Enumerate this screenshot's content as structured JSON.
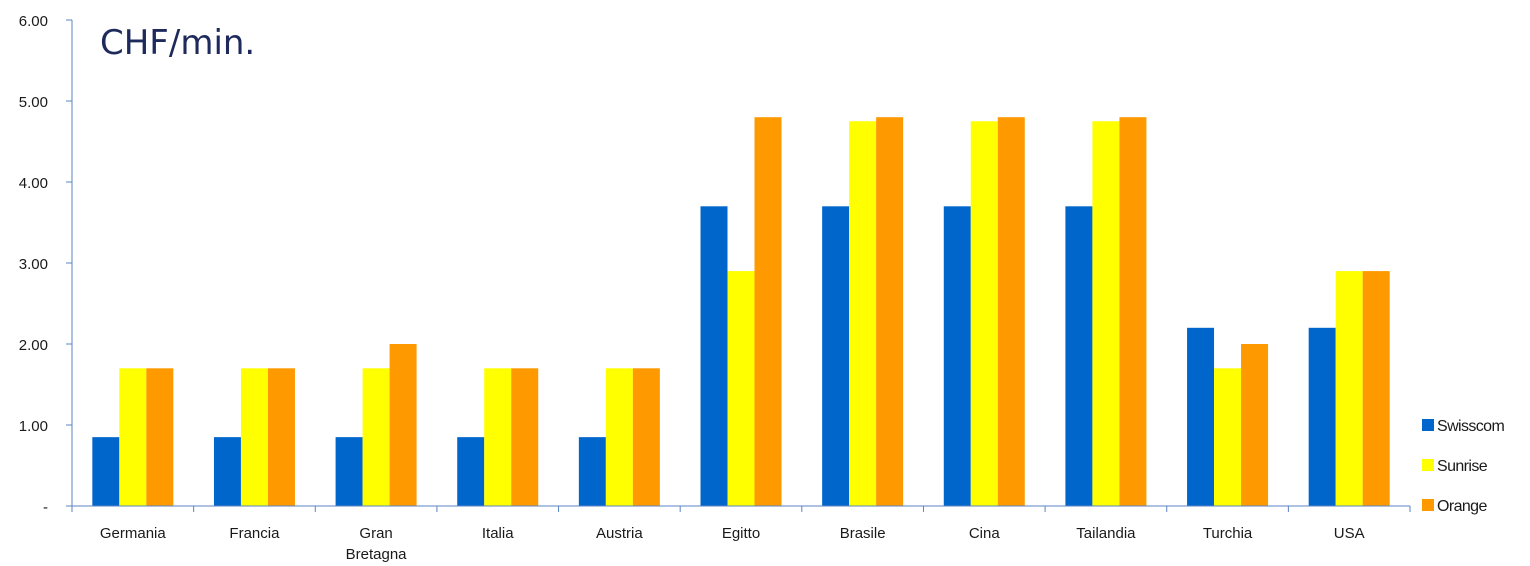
{
  "chart_data": {
    "type": "bar",
    "title": "CHF/min.",
    "categories": [
      "Germania",
      "Francia",
      "Gran Bretagna",
      "Italia",
      "Austria",
      "Egitto",
      "Brasile",
      "Cina",
      "Tailandia",
      "Turchia",
      "USA"
    ],
    "category_lines": [
      [
        "Germania"
      ],
      [
        "Francia"
      ],
      [
        "Gran",
        "Bretagna"
      ],
      [
        "Italia"
      ],
      [
        "Austria"
      ],
      [
        "Egitto"
      ],
      [
        "Brasile"
      ],
      [
        "Cina"
      ],
      [
        "Tailandia"
      ],
      [
        "Turchia"
      ],
      [
        "USA"
      ]
    ],
    "series": [
      {
        "name": "Swisscom",
        "color": "#0066cc",
        "values": [
          0.85,
          0.85,
          0.85,
          0.85,
          0.85,
          3.7,
          3.7,
          3.7,
          3.7,
          2.2,
          2.2
        ]
      },
      {
        "name": "Sunrise",
        "color": "#ffff00",
        "values": [
          1.7,
          1.7,
          1.7,
          1.7,
          1.7,
          2.9,
          4.75,
          4.75,
          4.75,
          1.7,
          2.9
        ]
      },
      {
        "name": "Orange",
        "color": "#ff9900",
        "values": [
          1.7,
          1.7,
          2.0,
          1.7,
          1.7,
          4.8,
          4.8,
          4.8,
          4.8,
          2.0,
          2.9
        ]
      }
    ],
    "ylim": [
      0,
      6
    ],
    "yticks": [
      0,
      1,
      2,
      3,
      4,
      5,
      6
    ],
    "ytick_labels": [
      "-",
      "1.00",
      "2.00",
      "3.00",
      "4.00",
      "5.00",
      "6.00"
    ],
    "xlabel": "",
    "ylabel": "",
    "grid": false,
    "legend_position": "right"
  }
}
